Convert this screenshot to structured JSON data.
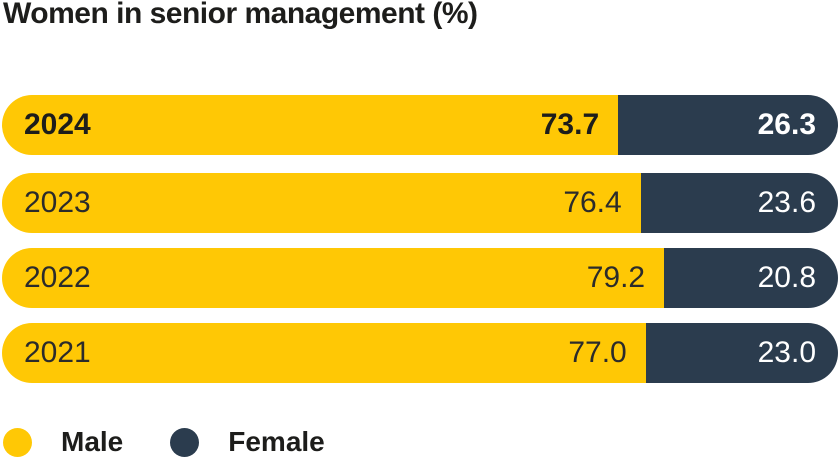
{
  "title": "Women in senior management (%)",
  "colors": {
    "male": "#FFC805",
    "female": "#2B3C4E",
    "text_dark": "#1D1D1B",
    "text_light": "#FFFFFF"
  },
  "rows": [
    {
      "year": "2024",
      "male_label": "73.7",
      "female_label": "26.3",
      "male_pct": 73.7,
      "female_pct": 26.3,
      "emphasis": true
    },
    {
      "year": "2023",
      "male_label": "76.4",
      "female_label": "23.6",
      "male_pct": 76.4,
      "female_pct": 23.6,
      "emphasis": false
    },
    {
      "year": "2022",
      "male_label": "79.2",
      "female_label": "20.8",
      "male_pct": 79.2,
      "female_pct": 20.8,
      "emphasis": false
    },
    {
      "year": "2021",
      "male_label": "77.0",
      "female_label": "23.0",
      "male_pct": 77.0,
      "female_pct": 23.0,
      "emphasis": false
    }
  ],
  "legend": [
    {
      "label": "Male",
      "color": "#FFC805"
    },
    {
      "label": "Female",
      "color": "#2B3C4E"
    }
  ],
  "chart_data": {
    "type": "bar",
    "orientation": "horizontal",
    "stacked": true,
    "title": "Women in senior management (%)",
    "categories": [
      "2024",
      "2023",
      "2022",
      "2021"
    ],
    "series": [
      {
        "name": "Male",
        "color": "#FFC805",
        "values": [
          73.7,
          76.4,
          79.2,
          77.0
        ]
      },
      {
        "name": "Female",
        "color": "#2B3C4E",
        "values": [
          26.3,
          23.6,
          20.8,
          23.0
        ]
      }
    ],
    "xlim": [
      0,
      100
    ],
    "value_labels": true,
    "grid": false,
    "legend_position": "bottom-left",
    "highlighted_category": "2024"
  }
}
